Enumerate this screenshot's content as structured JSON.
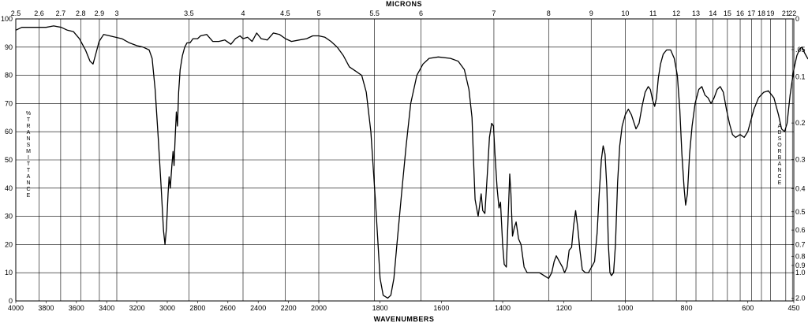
{
  "chart_data": {
    "type": "line",
    "top_axis_title": "MICRONS",
    "bottom_axis_title": "WAVENUMBERS",
    "left_axis_label": "%TRANSMITTANCE",
    "right_axis_label": "ABSORBANCE",
    "wavenumber_range": [
      4000,
      450
    ],
    "axis_break_wavenumber": 2000,
    "transmittance_range": [
      0,
      100
    ],
    "grid": true,
    "bottom_ticks": [
      {
        "value": 4000,
        "label": "4000"
      },
      {
        "value": 3800,
        "label": "3800"
      },
      {
        "value": 3600,
        "label": "3600"
      },
      {
        "value": 3400,
        "label": "3400"
      },
      {
        "value": 3200,
        "label": "3200"
      },
      {
        "value": 3000,
        "label": "3000"
      },
      {
        "value": 2800,
        "label": "2800"
      },
      {
        "value": 2600,
        "label": "2600"
      },
      {
        "value": 2400,
        "label": "2400"
      },
      {
        "value": 2200,
        "label": "2200"
      },
      {
        "value": 2000,
        "label": "2000"
      },
      {
        "value": 1800,
        "label": "1800"
      },
      {
        "value": 1600,
        "label": "1600"
      },
      {
        "value": 1400,
        "label": "1400"
      },
      {
        "value": 1200,
        "label": "1200"
      },
      {
        "value": 1000,
        "label": "1000"
      },
      {
        "value": 800,
        "label": "800"
      },
      {
        "value": 600,
        "label": "600"
      },
      {
        "value": 450,
        "label": "450"
      }
    ],
    "top_ticks": [
      {
        "value": 2.5,
        "label": "2.5"
      },
      {
        "value": 2.6,
        "label": "2.6"
      },
      {
        "value": 2.7,
        "label": "2.7"
      },
      {
        "value": 2.8,
        "label": "2.8"
      },
      {
        "value": 2.9,
        "label": "2.9"
      },
      {
        "value": 3,
        "label": "3"
      },
      {
        "value": 3.5,
        "label": "3.5"
      },
      {
        "value": 4,
        "label": "4"
      },
      {
        "value": 4.5,
        "label": "4.5"
      },
      {
        "value": 5,
        "label": "5"
      },
      {
        "value": 5.5,
        "label": "5.5"
      },
      {
        "value": 6,
        "label": "6"
      },
      {
        "value": 7,
        "label": "7"
      },
      {
        "value": 8,
        "label": "8"
      },
      {
        "value": 9,
        "label": "9"
      },
      {
        "value": 10,
        "label": "10"
      },
      {
        "value": 11,
        "label": "11"
      },
      {
        "value": 12,
        "label": "12"
      },
      {
        "value": 13,
        "label": "13"
      },
      {
        "value": 14,
        "label": "14"
      },
      {
        "value": 15,
        "label": "15"
      },
      {
        "value": 16,
        "label": "16"
      },
      {
        "value": 17,
        "label": "17"
      },
      {
        "value": 18,
        "label": "18"
      },
      {
        "value": 19,
        "label": "19"
      },
      {
        "value": 21,
        "label": "21"
      },
      {
        "value": 22,
        "label": "22"
      }
    ],
    "left_ticks": [
      {
        "value": 0,
        "label": "0"
      },
      {
        "value": 10,
        "label": "10"
      },
      {
        "value": 20,
        "label": "20"
      },
      {
        "value": 30,
        "label": "30"
      },
      {
        "value": 40,
        "label": "40"
      },
      {
        "value": 50,
        "label": "50"
      },
      {
        "value": 60,
        "label": "60"
      },
      {
        "value": 70,
        "label": "70"
      },
      {
        "value": 80,
        "label": "80"
      },
      {
        "value": 90,
        "label": "90"
      },
      {
        "value": 100,
        "label": "100"
      }
    ],
    "right_ticks": [
      {
        "value": 0,
        "label": "0"
      },
      {
        "value": 0.05,
        "label": ".05"
      },
      {
        "value": 0.1,
        "label": "0.1"
      },
      {
        "value": 0.2,
        "label": "0.2"
      },
      {
        "value": 0.3,
        "label": "0.3"
      },
      {
        "value": 0.4,
        "label": "0.4"
      },
      {
        "value": 0.5,
        "label": "0.5"
      },
      {
        "value": 0.6,
        "label": "0.6"
      },
      {
        "value": 0.7,
        "label": "0.7"
      },
      {
        "value": 0.8,
        "label": "0.8"
      },
      {
        "value": 0.9,
        "label": "0.9"
      },
      {
        "value": 1.0,
        "label": "1.0"
      },
      {
        "value": 2.0,
        "label": "2.0"
      }
    ],
    "series": [
      {
        "points": [
          [
            4000,
            96
          ],
          [
            3960,
            97
          ],
          [
            3900,
            97
          ],
          [
            3800,
            97
          ],
          [
            3750,
            97.5
          ],
          [
            3700,
            97
          ],
          [
            3660,
            96
          ],
          [
            3620,
            95.5
          ],
          [
            3580,
            93
          ],
          [
            3540,
            89
          ],
          [
            3510,
            85
          ],
          [
            3490,
            84
          ],
          [
            3470,
            88
          ],
          [
            3450,
            92
          ],
          [
            3420,
            94.5
          ],
          [
            3380,
            94
          ],
          [
            3300,
            93
          ],
          [
            3250,
            91.5
          ],
          [
            3200,
            90.5
          ],
          [
            3160,
            90
          ],
          [
            3120,
            89
          ],
          [
            3100,
            86
          ],
          [
            3080,
            75
          ],
          [
            3060,
            58
          ],
          [
            3040,
            40
          ],
          [
            3025,
            25
          ],
          [
            3015,
            20
          ],
          [
            3005,
            26
          ],
          [
            2995,
            38
          ],
          [
            2988,
            44
          ],
          [
            2980,
            40
          ],
          [
            2970,
            48
          ],
          [
            2962,
            53
          ],
          [
            2955,
            48
          ],
          [
            2948,
            58
          ],
          [
            2940,
            67
          ],
          [
            2933,
            62
          ],
          [
            2925,
            74
          ],
          [
            2915,
            82
          ],
          [
            2900,
            87
          ],
          [
            2885,
            90
          ],
          [
            2870,
            91.5
          ],
          [
            2850,
            91.5
          ],
          [
            2830,
            93
          ],
          [
            2800,
            93
          ],
          [
            2780,
            94
          ],
          [
            2740,
            94.5
          ],
          [
            2700,
            92
          ],
          [
            2660,
            92
          ],
          [
            2620,
            92.5
          ],
          [
            2580,
            91
          ],
          [
            2550,
            93
          ],
          [
            2520,
            94
          ],
          [
            2500,
            93
          ],
          [
            2470,
            93.5
          ],
          [
            2440,
            92
          ],
          [
            2410,
            95
          ],
          [
            2380,
            93
          ],
          [
            2340,
            92.5
          ],
          [
            2300,
            95
          ],
          [
            2260,
            94.5
          ],
          [
            2220,
            93
          ],
          [
            2180,
            92
          ],
          [
            2130,
            92.5
          ],
          [
            2080,
            93
          ],
          [
            2040,
            94
          ],
          [
            2000,
            94
          ],
          [
            1980,
            93.5
          ],
          [
            1960,
            92
          ],
          [
            1940,
            90
          ],
          [
            1920,
            87
          ],
          [
            1900,
            83
          ],
          [
            1880,
            81.5
          ],
          [
            1860,
            80
          ],
          [
            1845,
            74
          ],
          [
            1830,
            60
          ],
          [
            1815,
            35
          ],
          [
            1800,
            8
          ],
          [
            1790,
            2
          ],
          [
            1775,
            1
          ],
          [
            1765,
            2
          ],
          [
            1755,
            8
          ],
          [
            1745,
            20
          ],
          [
            1730,
            38
          ],
          [
            1715,
            55
          ],
          [
            1700,
            70
          ],
          [
            1680,
            80
          ],
          [
            1660,
            84
          ],
          [
            1640,
            86
          ],
          [
            1610,
            86.5
          ],
          [
            1570,
            86
          ],
          [
            1545,
            85
          ],
          [
            1525,
            82
          ],
          [
            1510,
            75
          ],
          [
            1500,
            65
          ],
          [
            1495,
            50
          ],
          [
            1490,
            36
          ],
          [
            1485,
            33
          ],
          [
            1480,
            30
          ],
          [
            1475,
            34
          ],
          [
            1470,
            38
          ],
          [
            1465,
            32
          ],
          [
            1458,
            31
          ],
          [
            1450,
            45
          ],
          [
            1443,
            58
          ],
          [
            1436,
            63
          ],
          [
            1430,
            62
          ],
          [
            1425,
            52
          ],
          [
            1418,
            40
          ],
          [
            1412,
            33
          ],
          [
            1407,
            35
          ],
          [
            1400,
            20
          ],
          [
            1395,
            13
          ],
          [
            1388,
            12
          ],
          [
            1382,
            30
          ],
          [
            1377,
            45
          ],
          [
            1373,
            38
          ],
          [
            1368,
            23
          ],
          [
            1362,
            26
          ],
          [
            1356,
            28
          ],
          [
            1348,
            22
          ],
          [
            1340,
            20
          ],
          [
            1330,
            12
          ],
          [
            1320,
            10
          ],
          [
            1300,
            10
          ],
          [
            1280,
            10
          ],
          [
            1265,
            9
          ],
          [
            1250,
            8
          ],
          [
            1240,
            10
          ],
          [
            1232,
            14
          ],
          [
            1225,
            16
          ],
          [
            1215,
            14
          ],
          [
            1205,
            12
          ],
          [
            1198,
            10
          ],
          [
            1190,
            12
          ],
          [
            1183,
            18
          ],
          [
            1175,
            19
          ],
          [
            1168,
            27
          ],
          [
            1162,
            32
          ],
          [
            1155,
            26
          ],
          [
            1148,
            18
          ],
          [
            1140,
            11
          ],
          [
            1130,
            10
          ],
          [
            1120,
            10
          ],
          [
            1110,
            12
          ],
          [
            1100,
            14
          ],
          [
            1092,
            24
          ],
          [
            1085,
            38
          ],
          [
            1078,
            50
          ],
          [
            1072,
            55
          ],
          [
            1066,
            52
          ],
          [
            1060,
            40
          ],
          [
            1055,
            20
          ],
          [
            1050,
            10
          ],
          [
            1045,
            9
          ],
          [
            1038,
            10
          ],
          [
            1032,
            20
          ],
          [
            1025,
            42
          ],
          [
            1018,
            55
          ],
          [
            1010,
            62
          ],
          [
            1000,
            66
          ],
          [
            990,
            68
          ],
          [
            980,
            66
          ],
          [
            965,
            61
          ],
          [
            955,
            63
          ],
          [
            945,
            69
          ],
          [
            935,
            74
          ],
          [
            925,
            76
          ],
          [
            918,
            75
          ],
          [
            910,
            71
          ],
          [
            904,
            69
          ],
          [
            898,
            72
          ],
          [
            892,
            79
          ],
          [
            885,
            84
          ],
          [
            876,
            87.5
          ],
          [
            865,
            89
          ],
          [
            852,
            89
          ],
          [
            840,
            86
          ],
          [
            830,
            80
          ],
          [
            822,
            68
          ],
          [
            815,
            52
          ],
          [
            808,
            40
          ],
          [
            803,
            34
          ],
          [
            797,
            38
          ],
          [
            790,
            52
          ],
          [
            782,
            62
          ],
          [
            772,
            70
          ],
          [
            760,
            75
          ],
          [
            750,
            76
          ],
          [
            740,
            73
          ],
          [
            730,
            72
          ],
          [
            720,
            70
          ],
          [
            710,
            72
          ],
          [
            700,
            75
          ],
          [
            690,
            76
          ],
          [
            680,
            74
          ],
          [
            670,
            68
          ],
          [
            660,
            63
          ],
          [
            650,
            59
          ],
          [
            640,
            58
          ],
          [
            625,
            59
          ],
          [
            612,
            58
          ],
          [
            600,
            60
          ],
          [
            590,
            64
          ],
          [
            580,
            68
          ],
          [
            565,
            72
          ],
          [
            548,
            74
          ],
          [
            533,
            74.5
          ],
          [
            515,
            72
          ],
          [
            500,
            66
          ],
          [
            490,
            61
          ],
          [
            480,
            60
          ],
          [
            472,
            63
          ],
          [
            462,
            73
          ],
          [
            450,
            82
          ],
          [
            440,
            87
          ],
          [
            430,
            89.5
          ],
          [
            423,
            90
          ],
          [
            415,
            88
          ],
          [
            405,
            86
          ],
          [
            395,
            85
          ],
          [
            385,
            87
          ],
          [
            375,
            87.5
          ],
          [
            365,
            86
          ],
          [
            355,
            83
          ],
          [
            350,
            80
          ]
        ]
      }
    ]
  }
}
